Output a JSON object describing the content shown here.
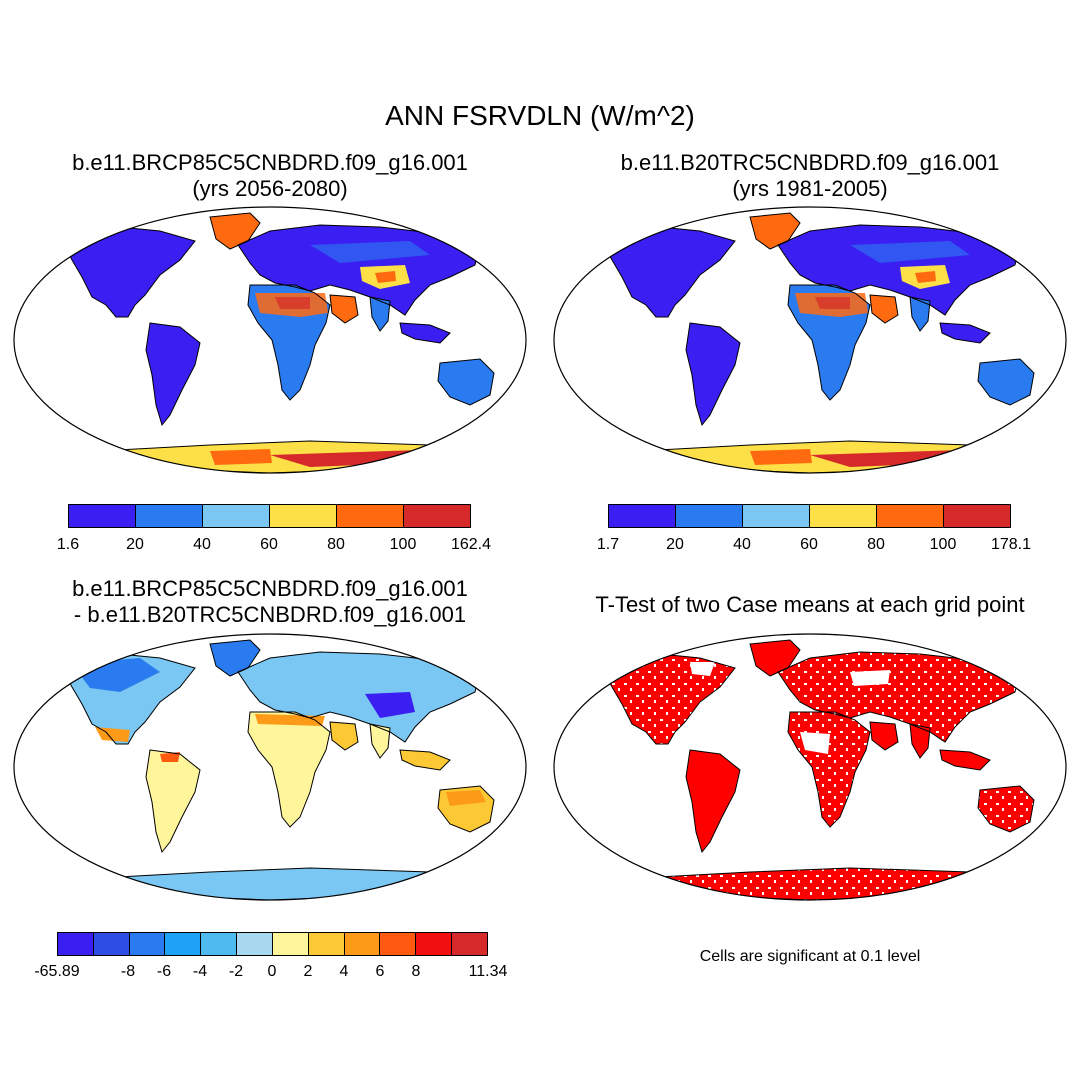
{
  "figure": {
    "title": "ANN FSRVDLN (W/m^2)"
  },
  "panels": [
    {
      "id": "case-future",
      "title_line1": "b.e11.BRCP85C5CNBDRD.f09_g16.001",
      "title_line2": "(yrs 2056-2080)",
      "colorbar": {
        "colors": [
          "#3a1ef2",
          "#2b7bf0",
          "#79c7f2",
          "#fde047",
          "#ff6a10",
          "#d62a2a"
        ],
        "ticks": [
          "1.6",
          "20",
          "40",
          "60",
          "80",
          "100",
          "162.4"
        ]
      }
    },
    {
      "id": "case-historical",
      "title_line1": "b.e11.B20TRC5CNBDRD.f09_g16.001",
      "title_line2": "(yrs 1981-2005)",
      "colorbar": {
        "colors": [
          "#3a1ef2",
          "#2b7bf0",
          "#79c7f2",
          "#fde047",
          "#ff6a10",
          "#d62a2a"
        ],
        "ticks": [
          "1.7",
          "20",
          "40",
          "60",
          "80",
          "100",
          "178.1"
        ]
      }
    },
    {
      "id": "difference",
      "title_line1": "b.e11.BRCP85C5CNBDRD.f09_g16.001",
      "title_line2": "- b.e11.B20TRC5CNBDRD.f09_g16.001",
      "colorbar": {
        "colors": [
          "#3a1ef2",
          "#2d4fe6",
          "#2b7bf0",
          "#1fa2f5",
          "#4dbbf0",
          "#a8d8f0",
          "#fff59a",
          "#fcc934",
          "#fd9a17",
          "#ff5a10",
          "#f01010",
          "#d62a2a"
        ],
        "ticks": [
          "-65.89",
          "-8",
          "-6",
          "-4",
          "-2",
          "0",
          "2",
          "4",
          "6",
          "8",
          "11.34"
        ]
      }
    },
    {
      "id": "ttest",
      "title_line1": "T-Test of two Case means at each grid point",
      "note": "Cells are significant at 0.1 level"
    }
  ],
  "colors": {
    "ocean": "#ffffff",
    "coast": "#000000",
    "significant": "#ff0000"
  }
}
